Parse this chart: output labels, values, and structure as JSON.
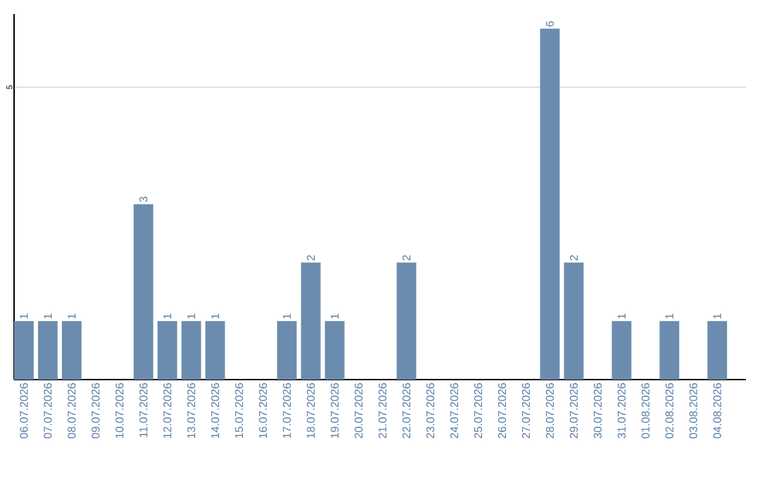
{
  "chart_data": {
    "type": "bar",
    "categories": [
      "06.07.2026",
      "07.07.2026",
      "08.07.2026",
      "09.07.2026",
      "10.07.2026",
      "11.07.2026",
      "12.07.2026",
      "13.07.2026",
      "14.07.2026",
      "15.07.2026",
      "16.07.2026",
      "17.07.2026",
      "18.07.2026",
      "19.07.2026",
      "20.07.2026",
      "21.07.2026",
      "22.07.2026",
      "23.07.2026",
      "24.07.2026",
      "25.07.2026",
      "26.07.2026",
      "27.07.2026",
      "28.07.2026",
      "29.07.2026",
      "30.07.2026",
      "31.07.2026",
      "01.08.2026",
      "02.08.2026",
      "03.08.2026",
      "04.08.2026"
    ],
    "values": [
      1,
      1,
      1,
      0,
      0,
      3,
      1,
      1,
      1,
      0,
      0,
      1,
      2,
      1,
      0,
      0,
      2,
      0,
      0,
      0,
      0,
      0,
      6,
      2,
      0,
      1,
      0,
      1,
      0,
      1
    ],
    "value_labels": [
      "1",
      "1",
      "1",
      null,
      null,
      "3",
      "1",
      "1",
      "1",
      null,
      null,
      "1",
      "2",
      "1",
      null,
      null,
      "2",
      null,
      null,
      null,
      null,
      null,
      "6",
      "2",
      null,
      "1",
      null,
      "1",
      null,
      "1"
    ],
    "color": "#6b8cae",
    "ylim": [
      0,
      6.25
    ],
    "yticks": [
      5
    ],
    "grid": "y"
  }
}
